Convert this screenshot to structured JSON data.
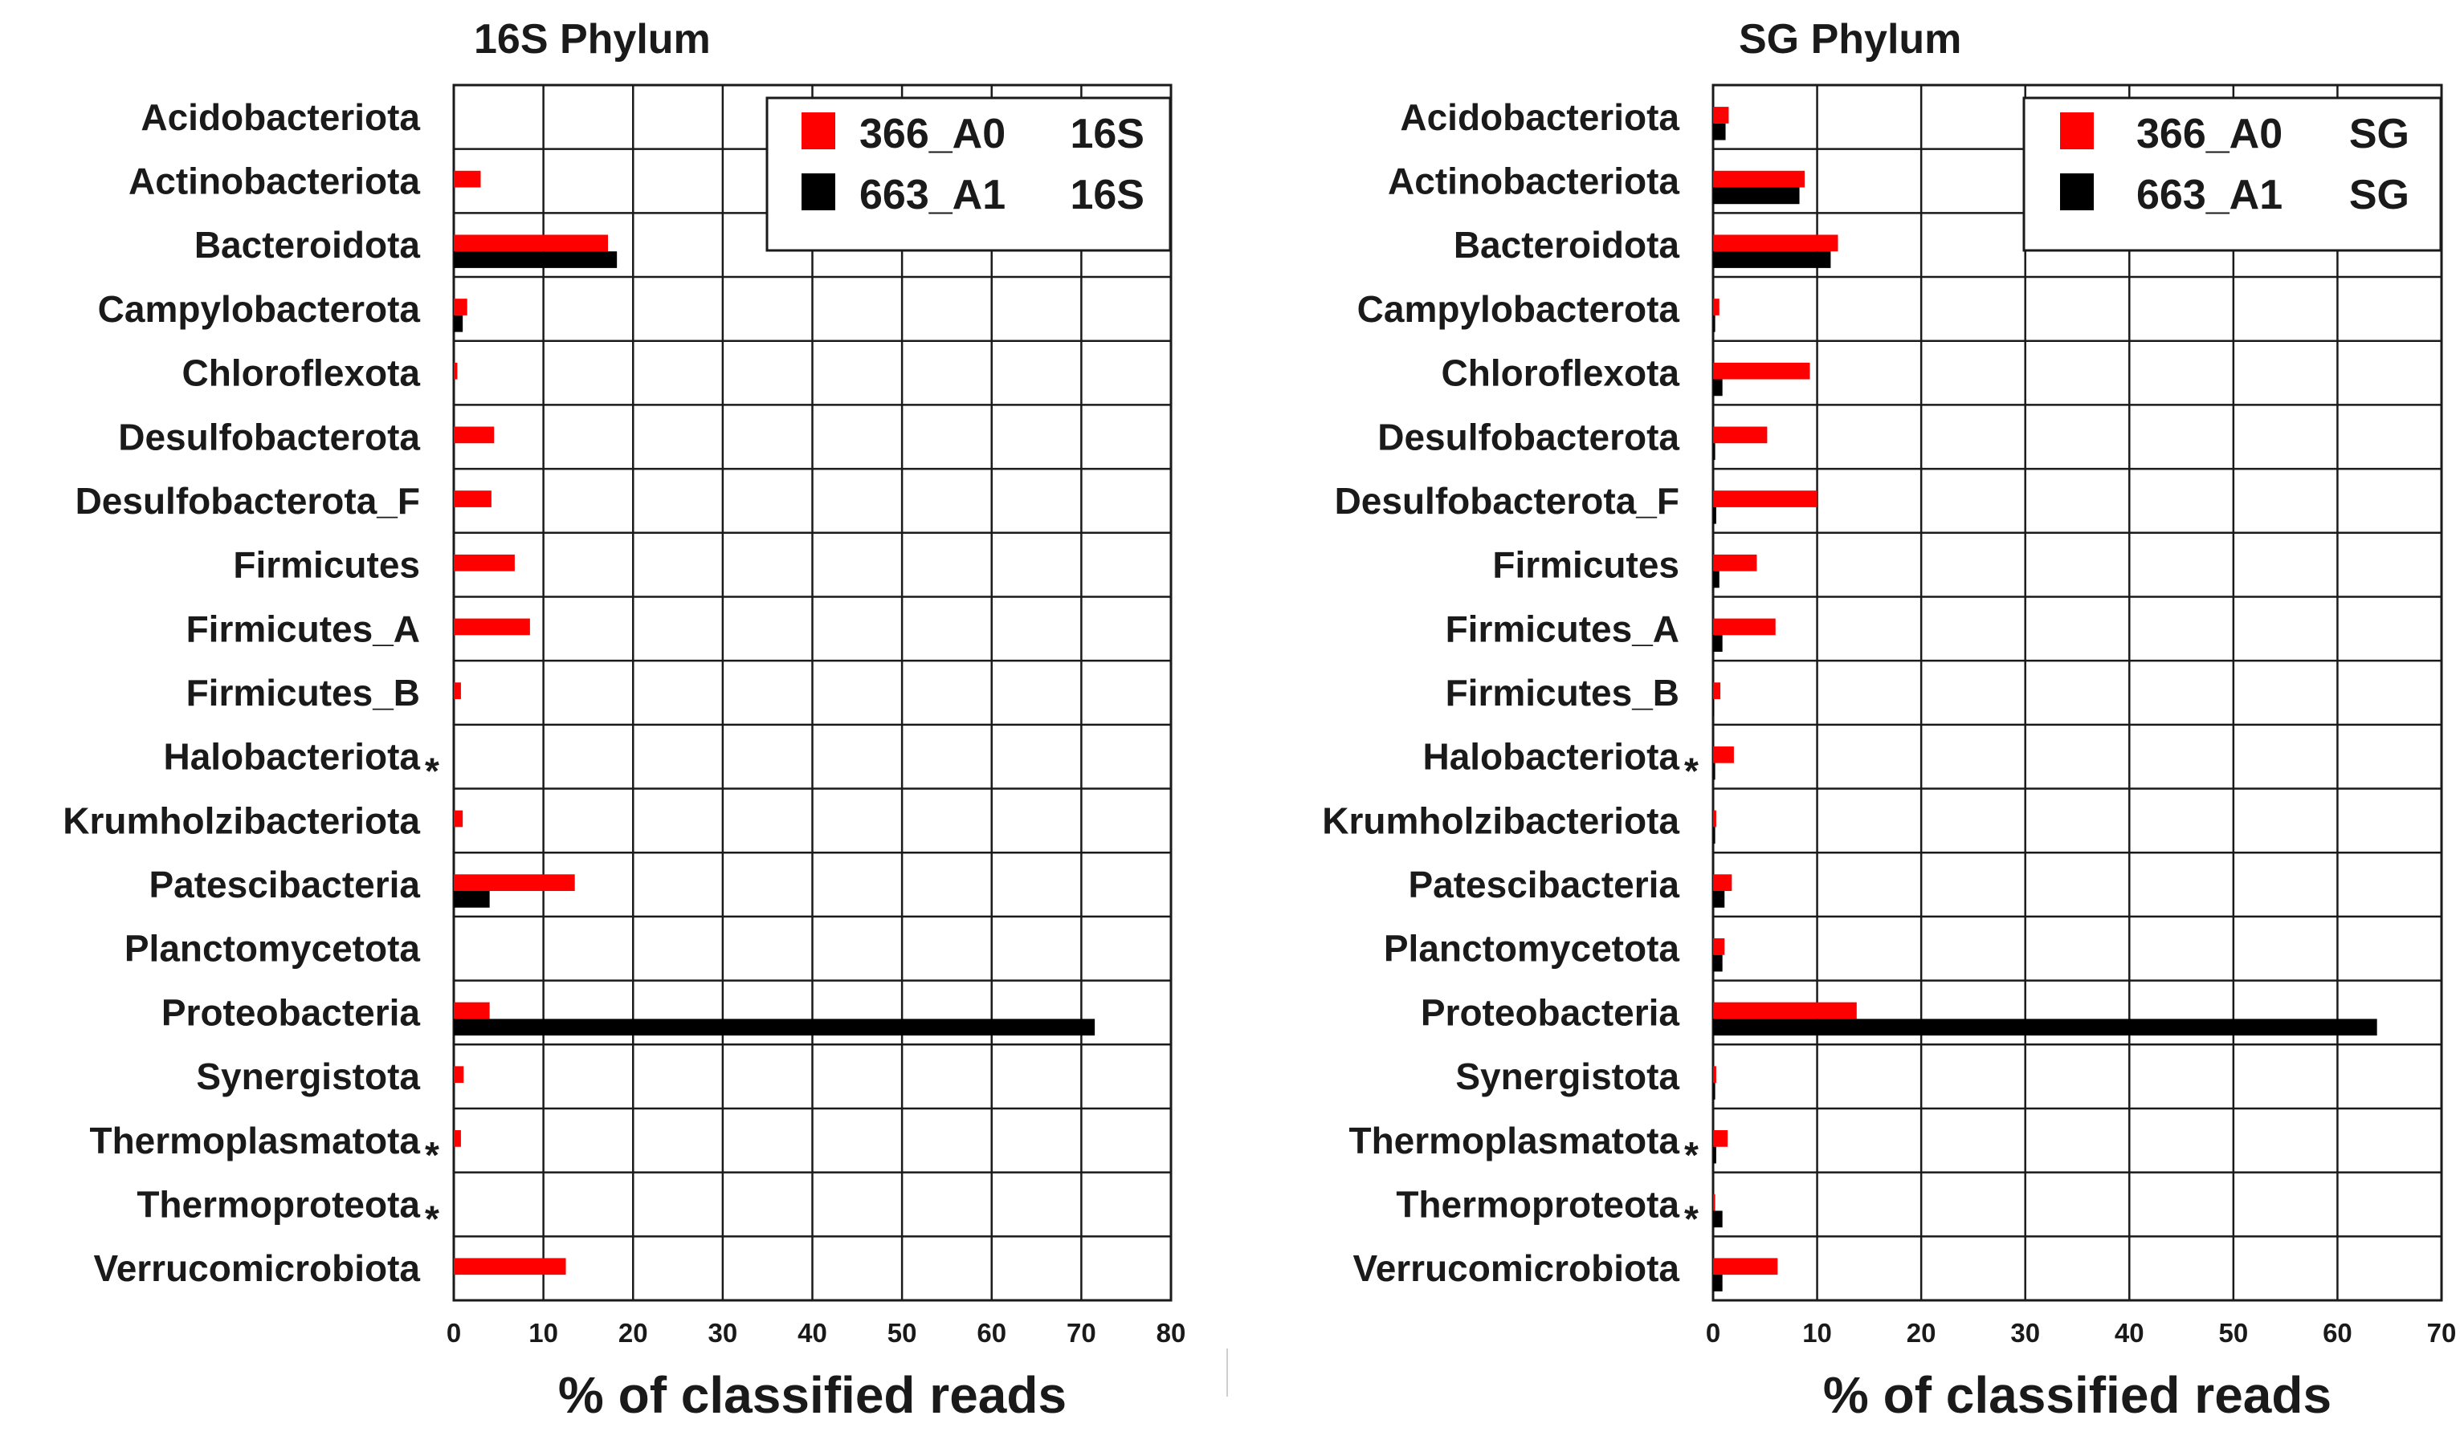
{
  "chart_data": [
    {
      "type": "bar",
      "orientation": "horizontal",
      "title": "16S Phylum",
      "xlabel": "% of classified reads",
      "ylabel": "",
      "xlim": [
        0,
        80
      ],
      "xticks": [
        0,
        10,
        20,
        30,
        40,
        50,
        60,
        70,
        80
      ],
      "grid": true,
      "legend_position": "top-right",
      "categories": [
        "Acidobacteriota",
        "Actinobacteriota",
        "Bacteroidota",
        "Campylobacterota",
        "Chloroflexota",
        "Desulfobacterota",
        "Desulfobacterota_F",
        "Firmicutes",
        "Firmicutes_A",
        "Firmicutes_B",
        "Halobacteriota",
        "Krumholzibacteriota",
        "Patescibacteria",
        "Planctomycetota",
        "Proteobacteria",
        "Synergistota",
        "Thermoplasmatota",
        "Thermoproteota",
        "Verrucomicrobiota"
      ],
      "category_markers": [
        "",
        "",
        "",
        "",
        "",
        "",
        "",
        "",
        "",
        "",
        "*",
        "",
        "",
        "",
        "",
        "",
        "*",
        "*",
        ""
      ],
      "series": [
        {
          "name": "366_A0",
          "tag": "16S",
          "color": "#ff0000",
          "values": [
            0,
            3,
            17.2,
            1.5,
            0.4,
            4.5,
            4.2,
            6.8,
            8.5,
            0.8,
            0,
            1.0,
            13.5,
            0,
            4.0,
            1.1,
            0.8,
            0,
            12.5
          ]
        },
        {
          "name": "663_A1",
          "tag": "16S",
          "color": "#000000",
          "values": [
            0,
            0,
            18.2,
            1.0,
            0,
            0,
            0,
            0,
            0,
            0,
            0,
            0,
            4.0,
            0,
            71.5,
            0,
            0,
            0,
            0
          ]
        }
      ]
    },
    {
      "type": "bar",
      "orientation": "horizontal",
      "title": "SG Phylum",
      "xlabel": "% of classified reads",
      "ylabel": "",
      "xlim": [
        0,
        70
      ],
      "xticks": [
        0,
        10,
        20,
        30,
        40,
        50,
        60,
        70
      ],
      "grid": true,
      "legend_position": "top-right",
      "categories": [
        "Acidobacteriota",
        "Actinobacteriota",
        "Bacteroidota",
        "Campylobacterota",
        "Chloroflexota",
        "Desulfobacterota",
        "Desulfobacterota_F",
        "Firmicutes",
        "Firmicutes_A",
        "Firmicutes_B",
        "Halobacteriota",
        "Krumholzibacteriota",
        "Patescibacteria",
        "Planctomycetota",
        "Proteobacteria",
        "Synergistota",
        "Thermoplasmatota",
        "Thermoproteota",
        "Verrucomicrobiota"
      ],
      "category_markers": [
        "",
        "",
        "",
        "",
        "",
        "",
        "",
        "",
        "",
        "",
        "*",
        "",
        "",
        "",
        "",
        "",
        "*",
        "*",
        ""
      ],
      "series": [
        {
          "name": "366_A0",
          "tag": "SG",
          "color": "#ff0000",
          "values": [
            1.5,
            8.8,
            12.0,
            0.6,
            9.3,
            5.2,
            10.0,
            4.2,
            6.0,
            0.7,
            2.0,
            0.3,
            1.8,
            1.1,
            13.8,
            0.3,
            1.4,
            0.2,
            6.2
          ]
        },
        {
          "name": "663_A1",
          "tag": "SG",
          "color": "#000000",
          "values": [
            1.2,
            8.3,
            11.3,
            0.2,
            0.9,
            0.2,
            0.3,
            0.6,
            0.9,
            0.1,
            0.2,
            0.2,
            1.1,
            0.9,
            63.8,
            0.2,
            0.3,
            0.9,
            0.9
          ]
        }
      ]
    }
  ]
}
